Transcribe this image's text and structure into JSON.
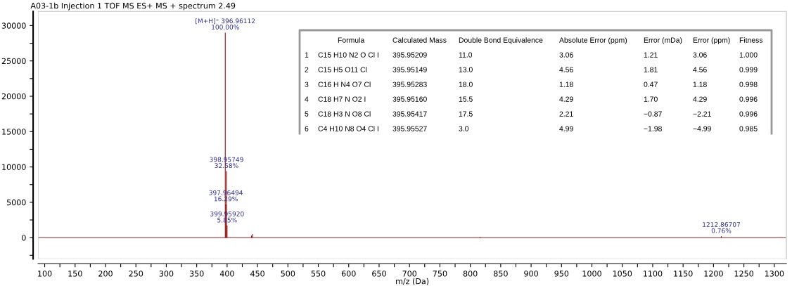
{
  "chart_data": {
    "type": "bar",
    "title": "A03-1b Injection 1 TOF MS ES+ MS + spectrum 2.49",
    "xlabel": "m/z (Da)",
    "x": [
      396.96112,
      397.96494,
      398.95749,
      399.9592,
      440,
      442,
      816,
      1212.86707
    ],
    "values": [
      29000,
      4700,
      9400,
      1700,
      300,
      500,
      100,
      200
    ],
    "color": "#8b0000",
    "xlim": [
      89,
      1320
    ],
    "ylim": [
      -3000,
      32000
    ],
    "xticks": [
      100,
      {
        "value": 125,
        "label": null
      },
      150,
      {
        "value": 175,
        "label": null
      },
      200,
      {
        "value": 225,
        "label": null
      },
      250,
      {
        "value": 275,
        "label": null
      },
      300,
      {
        "value": 325,
        "label": null
      },
      350,
      {
        "value": 375,
        "label": null
      },
      400,
      {
        "value": 425,
        "label": null
      },
      450,
      {
        "value": 475,
        "label": null
      },
      500,
      {
        "value": 525,
        "label": null
      },
      550,
      {
        "value": 575,
        "label": null
      },
      600,
      {
        "value": 625,
        "label": null
      },
      650,
      {
        "value": 675,
        "label": null
      },
      700,
      {
        "value": 725,
        "label": null
      },
      750,
      {
        "value": 775,
        "label": null
      },
      800,
      {
        "value": 825,
        "label": null
      },
      850,
      {
        "value": 875,
        "label": null
      },
      900,
      {
        "value": 925,
        "label": null
      },
      950,
      {
        "value": 975,
        "label": null
      },
      1000,
      {
        "value": 1025,
        "label": null
      },
      1050,
      {
        "value": 1075,
        "label": null
      },
      1100,
      {
        "value": 1125,
        "label": null
      },
      1150,
      {
        "value": 1175,
        "label": null
      },
      1200,
      {
        "value": 1225,
        "label": null
      },
      1250,
      {
        "value": 1275,
        "label": null
      },
      1300
    ],
    "yticks": [
      {
        "value": -2500,
        "label": null
      },
      0,
      {
        "value": 2500,
        "label": null
      },
      5000,
      {
        "value": 7500,
        "label": null
      },
      10000,
      {
        "value": 12500,
        "label": null
      },
      15000,
      {
        "value": 17500,
        "label": null
      },
      20000,
      {
        "value": 22500,
        "label": null
      },
      25000,
      {
        "value": 27500,
        "label": null
      },
      30000
    ],
    "ref_lines": [
      {
        "axis": "y",
        "value": 0,
        "color": "#a05050"
      }
    ],
    "annotations": [
      {
        "text": "[M+H]⁺ 396.96112\n100.00%",
        "x": 396.96112,
        "y": 29000
      },
      {
        "text": "397.96494\n16.29%",
        "x": 397.96494,
        "y": 4700
      },
      {
        "text": "398.95749\n32.58%",
        "x": 398.95749,
        "y": 9400
      },
      {
        "text": "399.95920\n5.85%",
        "x": 399.9592,
        "y": 1700
      },
      {
        "text": "1212.86707\n0.76%",
        "x": 1212.86707,
        "y": 200
      },
      "\tFormula\tCalculated Mass\tDouble Bond Equivalence\tAbsolute Error (ppm)\tError (mDa)\tError (ppm)\tFitness",
      "1\tC15 H10 N2 O Cl I\t395.95209\t11.0\t3.06\t1.21\t3.06\t1.000",
      "2\tC15 H5 O11 Cl\t395.95149\t13.0\t4.56\t1.81\t4.56\t0.999",
      "3\tC16 H N4 O7 Cl\t395.95283\t18.0\t1.18\t0.47\t1.18\t0.998",
      "4\tC18 H7 N O2 I\t395.95160\t15.5\t4.29\t1.70\t4.29\t0.996",
      "5\tC18 H3 N O8 Cl\t395.95417\t17.5\t2.21\t−0.87\t−2.21\t0.996",
      "6\tC4 H10 N8 O4 Cl I\t395.95527\t3.0\t4.99\t−1.98\t−4.99\t0.985"
    ],
    "grid": false,
    "legend": false
  }
}
